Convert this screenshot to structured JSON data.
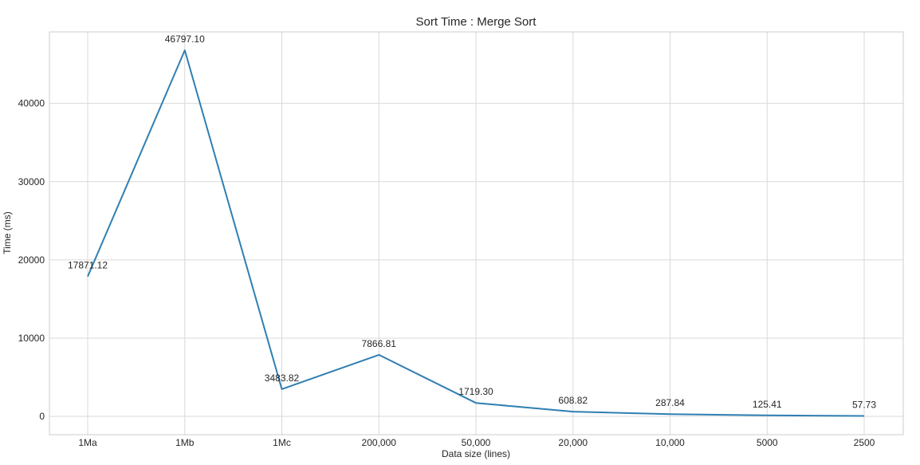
{
  "chart_data": {
    "type": "line",
    "title": "Sort Time : Merge Sort",
    "xlabel": "Data size (lines)",
    "ylabel": "Time (ms)",
    "categories": [
      "1Ma",
      "1Mb",
      "1Mc",
      "200,000",
      "50,000",
      "20,000",
      "10,000",
      "5000",
      "2500"
    ],
    "series": [
      {
        "values": [
          17871.12,
          46797.1,
          3483.82,
          7866.81,
          1719.3,
          608.82,
          287.84,
          125.41,
          57.73
        ],
        "labels": [
          "17871.12",
          "46797.10",
          "3483.82",
          "7866.81",
          "1719.30",
          "608.82",
          "287.84",
          "125.41",
          "57.73"
        ],
        "color": "#2f7fb3"
      }
    ],
    "yticks": [
      0,
      10000,
      20000,
      30000,
      40000
    ],
    "ylim": [
      -2340,
      49140
    ],
    "grid": true,
    "gridColor": "#d9d9d9",
    "frameColor": "#cccccc"
  }
}
